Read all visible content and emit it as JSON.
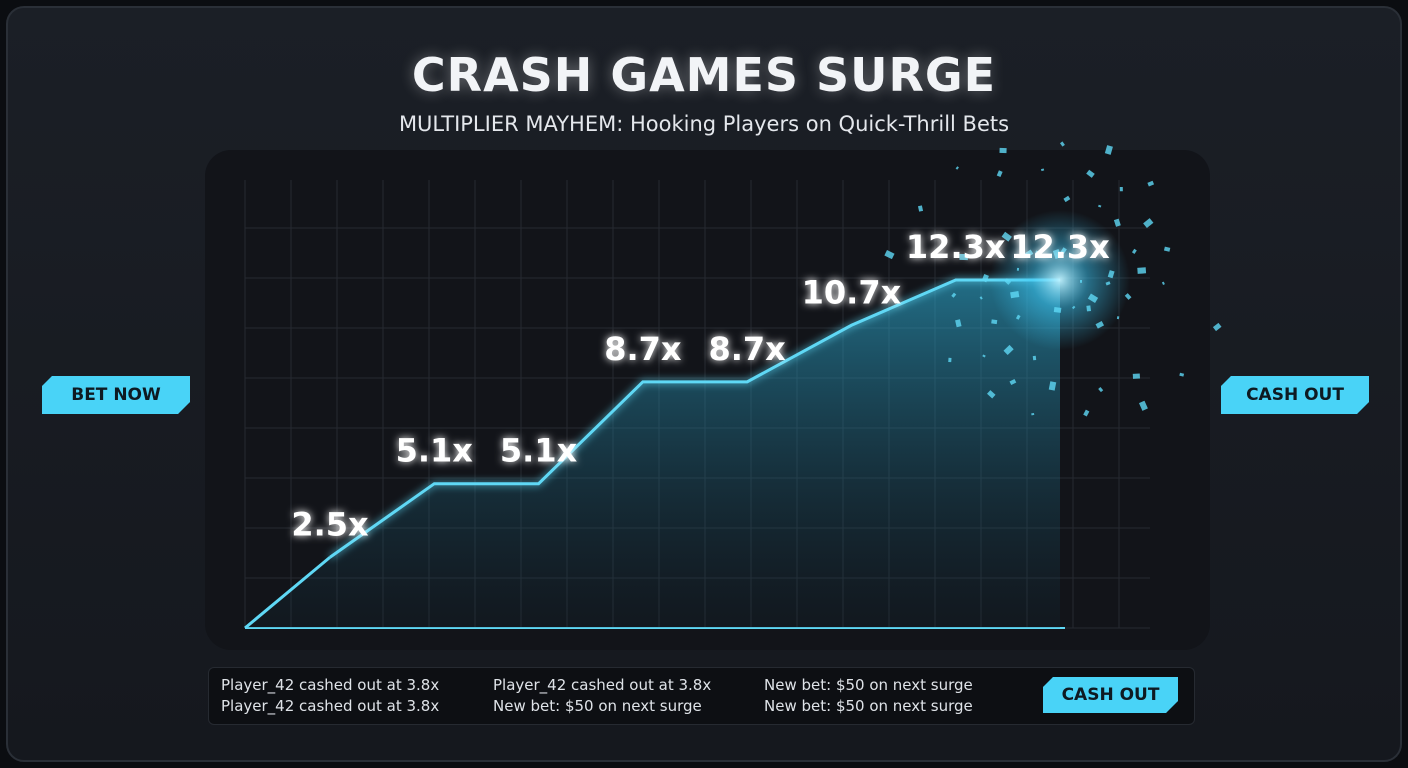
{
  "header": {
    "title": "CRASH GAMES SURGE",
    "subtitle": "MULTIPLIER MAYHEM: Hooking Players on Quick-Thrill Bets"
  },
  "buttons": {
    "bet": "BET NOW",
    "cash_out_side": "CASH OUT",
    "cash_out_feed": "CASH OUT"
  },
  "chart_data": {
    "type": "line",
    "color": "#5fd8f5",
    "values": [
      2.5,
      5.1,
      5.1,
      8.7,
      8.7,
      10.7,
      12.3,
      12.3
    ],
    "value_labels": [
      "2.5x",
      "5.1x",
      "5.1x",
      "8.7x",
      "8.7x",
      "10.7x",
      "12.3x",
      "12.3x"
    ]
  },
  "feed": {
    "rows": [
      [
        "Player_42 cashed out at 3.8x",
        "Player_42 cashed out at 3.8x",
        "New bet: $50 on next surge"
      ],
      [
        "Player_42 cashed out at 3.8x",
        "New bet: $50 on next surge",
        "New bet: $50 on next surge"
      ]
    ]
  }
}
